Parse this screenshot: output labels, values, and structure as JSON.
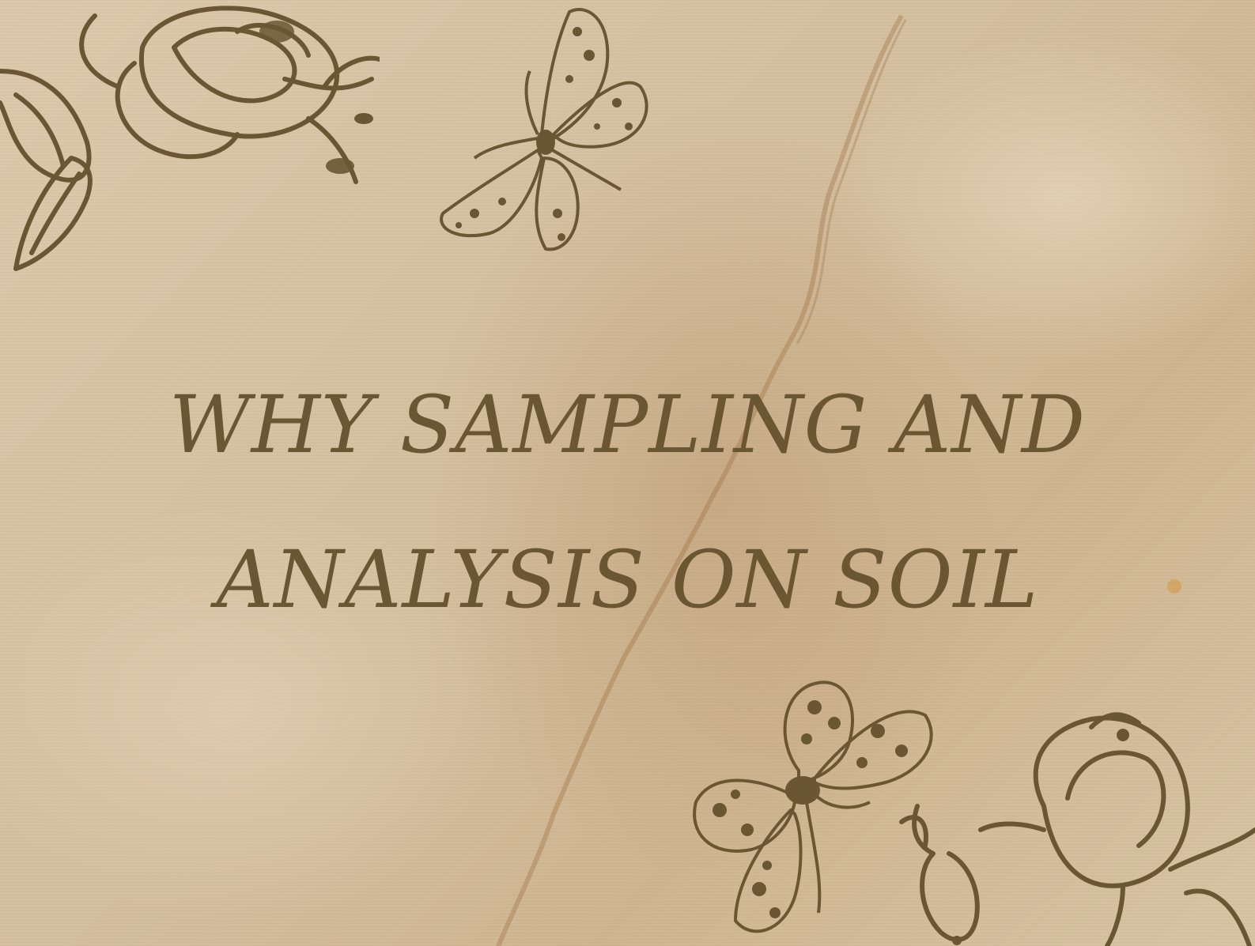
{
  "title": {
    "line1": "WHY SAMPLING AND",
    "line2": "ANALYSIS ON SOIL"
  },
  "colors": {
    "ink": "#6b5634",
    "paper": "#d7c3a3",
    "stain": "#a0703c"
  },
  "decorations": [
    "rose-illustration",
    "moth-illustration",
    "butterfly-illustration",
    "flower-bud-illustration"
  ]
}
